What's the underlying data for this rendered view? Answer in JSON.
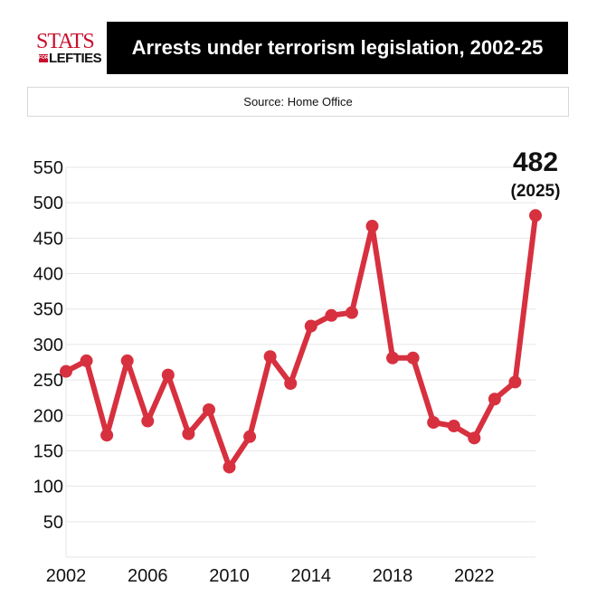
{
  "logo": {
    "line1": "STATS",
    "small": "FOR",
    "line2": "LEFTIES"
  },
  "title": "Arrests under terrorism legislation, 2002-25",
  "source": "Source: Home Office",
  "colors": {
    "line": "#d7303f",
    "title_bg": "#000000",
    "grid": "#e6e6e6"
  },
  "chart_data": {
    "type": "line",
    "title": "Arrests under terrorism legislation, 2002-25",
    "xlabel": "",
    "ylabel": "",
    "x": [
      2002,
      2003,
      2004,
      2005,
      2006,
      2007,
      2008,
      2009,
      2010,
      2011,
      2012,
      2013,
      2014,
      2015,
      2016,
      2017,
      2018,
      2019,
      2020,
      2021,
      2022,
      2023,
      2024,
      2025
    ],
    "series": [
      {
        "values": [
          262,
          277,
          172,
          277,
          192,
          257,
          174,
          208,
          127,
          170,
          283,
          245,
          326,
          341,
          345,
          467,
          281,
          281,
          190,
          185,
          168,
          223,
          247,
          482
        ]
      }
    ],
    "xlim": [
      2002,
      2025
    ],
    "ylim": [
      0,
      550
    ],
    "yticks": [
      50,
      100,
      150,
      200,
      250,
      300,
      350,
      400,
      450,
      500,
      550
    ],
    "xticks": [
      2002,
      2006,
      2010,
      2014,
      2018,
      2022
    ],
    "grid": true,
    "annotation": {
      "value": "482",
      "label": "(2025)"
    }
  }
}
